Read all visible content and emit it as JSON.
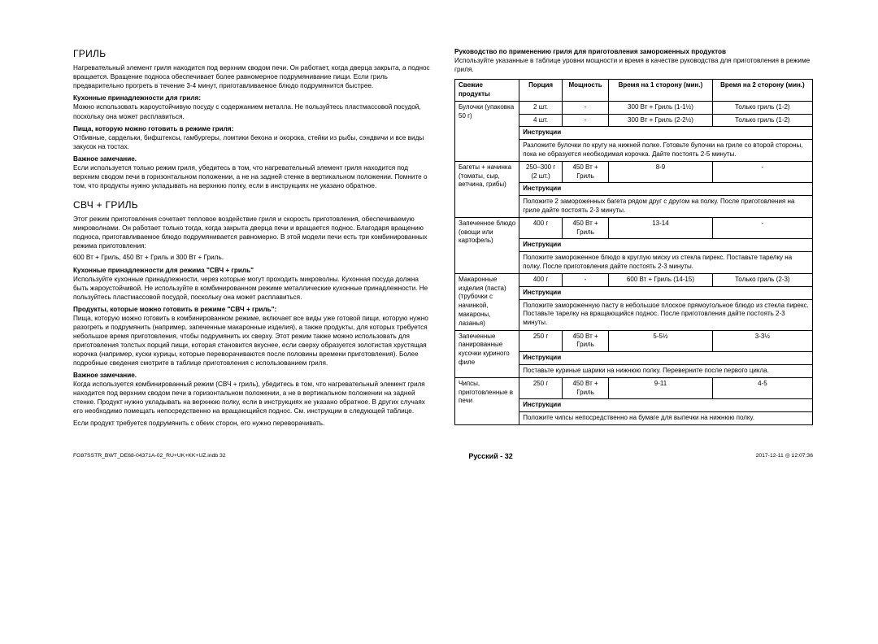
{
  "left": {
    "section1": {
      "title": "ГРИЛЬ",
      "p1": "Нагревательный элемент гриля находится под верхним сводом печи. Он работает, когда дверца закрыта, а поднос вращается. Вращение подноса обеспечивает более равномерное подрумянивание пищи. Если гриль предварительно прогреть в течение 3-4 минут, приготавливаемое блюдо подрумянится быстрее.",
      "h1": "Кухонные принадлежности для гриля:",
      "p2": "Можно использовать жароустойчивую посуду с содержанием металла. Не пользуйтесь пластмассовой посудой, поскольку она может расплавиться.",
      "h2": "Пища, которую можно готовить в режиме гриля:",
      "p3": "Отбивные, сардельки, бифштексы, гамбургеры, ломтики бекона и окорока, стейки из рыбы, сэндвичи и все виды закусок на тостах.",
      "h3": "Важное замечание.",
      "p4": "Если используется только режим гриля, убедитесь в том, что нагревательный элемент гриля находится под верхним сводом печи в горизонтальном положении, а не на задней стенке в вертикальном положении. Помните о том, что продукты нужно укладывать на верхнюю полку, если в инструкциях не указано обратное."
    },
    "section2": {
      "title": "СВЧ + ГРИЛЬ",
      "p1": "Этот режим приготовления сочетает тепловое воздействие гриля и скорость приготовления, обеспечиваемую микроволнами. Он работает только тогда, когда закрыта дверца печи и вращается поднос. Благодаря вращению подноса, приготавливаемое блюдо подрумянивается равномерно. В этой модели печи есть три комбинированных режима приготовления:",
      "p2": "600 Вт + Гриль, 450 Вт + Гриль и 300 Вт + Гриль.",
      "h1": "Кухонные принадлежности для режима \"СВЧ + гриль\"",
      "p3": "Используйте кухонные принадлежности, через которые могут проходить микроволны. Кухонная посуда должна быть жароустойчивой. Не используйте в комбинированном режиме металлические кухонные принадлежности. Не пользуйтесь пластмассовой посудой, поскольку она может расплавиться.",
      "h2": "Продукты, которые можно готовить в режиме \"СВЧ + гриль\":",
      "p4": "Пища, которую можно готовить в комбинированном режиме, включает все виды уже готовой пищи, которую нужно разогреть и подрумянить (например, запеченные макаронные изделия), а также продукты, для которых требуется небольшое время приготовления, чтобы подрумянить их сверху. Этот режим также можно использовать для приготовления толстых порций пищи, которая становится вкуснее, если сверху образуется золотистая хрустящая корочка (например, куски курицы, которые переворачиваются после половины времени приготовления). Более подробные сведения смотрите в таблице приготовления с использованием гриля.",
      "h3": "Важное замечание.",
      "p5": "Когда используется комбинированный режим (СВЧ + гриль), убедитесь в том, что нагревательный элемент гриля находится под верхним сводом печи в горизонтальном положении, а не в вертикальном положении на задней стенке. Продукт нужно укладывать на верхнюю полку, если в инструкциях не указано обратное. В других случаях его необходимо помещать непосредственно на вращающийся поднос. См. инструкции в следующей таблице.",
      "p6": "Если продукт требуется подрумянить с обеих сторон, его нужно переворачивать."
    }
  },
  "right": {
    "title": "Руководство по применению гриля для приготовления замороженных продуктов",
    "intro": "Используйте указанные в таблице уровни мощности и время в качестве руководства для приготовления в режиме гриля.",
    "headers": {
      "product": "Свежие продукты",
      "portion": "Порция",
      "power": "Мощность",
      "t1": "Время на 1 сторону (мин.)",
      "t2": "Время на 2 сторону (мин.)",
      "instr": "Инструкции"
    },
    "rows": [
      {
        "product": "Булочки (упаковка 50 г)",
        "lines": [
          {
            "portion": "2 шт.",
            "power": "-",
            "t1": "300 Вт + Гриль (1-1½)",
            "t2": "Только гриль (1-2)"
          },
          {
            "portion": "4 шт.",
            "power": "-",
            "t1": "300 Вт + Гриль (2-2½)",
            "t2": "Только гриль (1-2)"
          }
        ],
        "instr": "Разложите булочки по кругу на нижней полке. Готовьте булочки на гриле со второй стороны, пока не образуется необходимая корочка. Дайте постоять 2-5 минуты."
      },
      {
        "product": "Багеты + начинка (томаты, сыр, ветчина, грибы)",
        "lines": [
          {
            "portion": "250–300 г (2 шт.)",
            "power": "450 Вт + Гриль",
            "t1": "8-9",
            "t2": "-"
          }
        ],
        "instr": "Положите 2 замороженных багета рядом друг с другом на полку. После приготовления на гриле дайте постоять 2-3 минуты."
      },
      {
        "product": "Запеченное блюдо (овощи или картофель)",
        "lines": [
          {
            "portion": "400 г",
            "power": "450 Вт + Гриль",
            "t1": "13-14",
            "t2": "-"
          }
        ],
        "instr": "Положите замороженное блюдо в круглую миску из стекла пирекс. Поставьте тарелку на полку. После приготовления дайте постоять 2-3 минуты."
      },
      {
        "product": "Макаронные изделия (паста) (трубочки с начинкой, макароны, лазанья)",
        "lines": [
          {
            "portion": "400 г",
            "power": "-",
            "t1": "600 Вт + Гриль (14-15)",
            "t2": "Только гриль (2-3)"
          }
        ],
        "instr": "Положите замороженную пасту в небольшое плоское прямоугольное блюдо из стекла пирекс. Поставьте тарелку на вращающийся поднос. После приготовления дайте постоять 2-3 минуты."
      },
      {
        "product": "Запеченные панированные кусочки куриного филе",
        "lines": [
          {
            "portion": "250 г",
            "power": "450 Вт + Гриль",
            "t1": "5-5½",
            "t2": "3-3½"
          }
        ],
        "instr": "Поставьте куриные шарики на нижнюю полку. Переверните после первого цикла."
      },
      {
        "product": "Чипсы, приготовленные в печи",
        "lines": [
          {
            "portion": "250 г",
            "power": "450 Вт + Гриль",
            "t1": "9-11",
            "t2": "4-5"
          }
        ],
        "instr": "Положите чипсы непосредственно на бумаге для выпечки на нижнюю полку."
      }
    ]
  },
  "footer": {
    "left": "FG87SSTR_BWT_DE68-04371A-02_RU+UK+KK+UZ.indb   32",
    "center": "Русский - 32",
    "right": "2017-12-11   ◎ 12:07:36"
  }
}
